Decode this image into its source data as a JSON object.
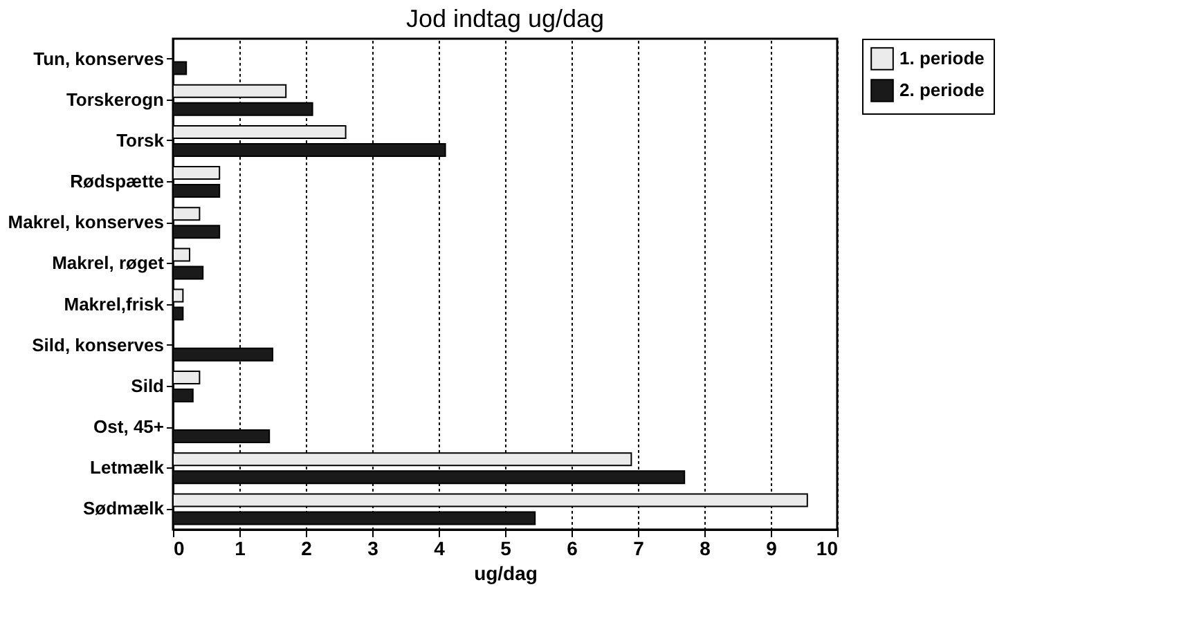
{
  "chart_data": {
    "type": "bar",
    "orientation": "horizontal",
    "title": "Jod indtag ug/dag",
    "xlabel": "ug/dag",
    "categories": [
      "Tun, konserves",
      "Torskerogn",
      "Torsk",
      "Rødspætte",
      "Makrel, konserves",
      "Makrel, røget",
      "Makrel,frisk",
      "Sild, konserves",
      "Sild",
      "Ost, 45+",
      "Letmælk",
      "Sødmælk"
    ],
    "series": [
      {
        "name": "1. periode",
        "color": "#ebebeb",
        "values": [
          null,
          1.7,
          2.6,
          0.7,
          0.4,
          0.25,
          0.15,
          null,
          0.4,
          null,
          6.9,
          9.55
        ]
      },
      {
        "name": "2. periode",
        "color": "#1a1a1a",
        "values": [
          0.2,
          2.1,
          4.1,
          0.7,
          0.7,
          0.45,
          0.15,
          1.5,
          0.3,
          1.45,
          7.7,
          5.45
        ]
      }
    ],
    "xlim": [
      0,
      10
    ],
    "xticks": [
      0,
      1,
      2,
      3,
      4,
      5,
      6,
      7,
      8,
      9,
      10
    ],
    "grid": "x",
    "legend": "top right"
  }
}
